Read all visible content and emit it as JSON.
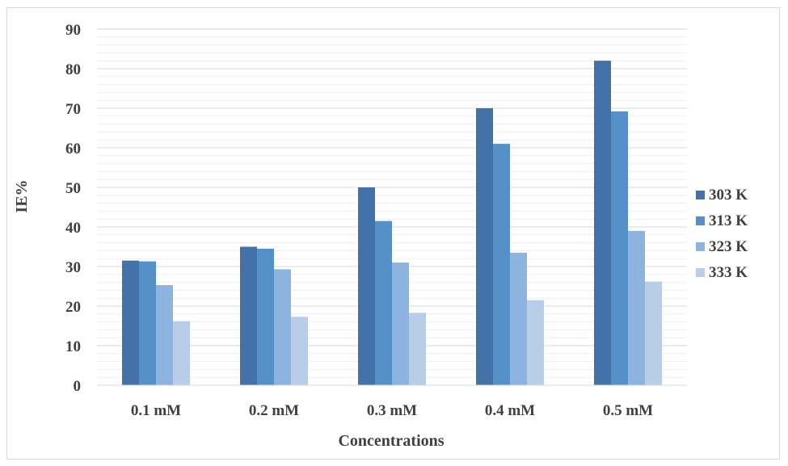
{
  "chart_data": {
    "type": "bar",
    "categories": [
      "0.1 mM",
      "0.2 mM",
      "0.3 mM",
      "0.4 mM",
      "0.5 mM"
    ],
    "series": [
      {
        "name": "303 K",
        "color": "#4472a8",
        "values": [
          31.5,
          35.0,
          50.0,
          70.0,
          82.0
        ]
      },
      {
        "name": "313 K",
        "color": "#5590c8",
        "values": [
          31.3,
          34.5,
          41.5,
          61.0,
          69.2
        ]
      },
      {
        "name": "323 K",
        "color": "#8db3df",
        "values": [
          25.3,
          29.3,
          31.0,
          33.5,
          39.0
        ]
      },
      {
        "name": "333 K",
        "color": "#b8cde8",
        "values": [
          16.2,
          17.3,
          18.3,
          21.5,
          26.2
        ]
      }
    ],
    "ylim": [
      0,
      90
    ],
    "yticks": [
      0,
      10,
      20,
      30,
      40,
      50,
      60,
      70,
      80,
      90
    ],
    "xlabel": "Concentrations",
    "ylabel": "IE%",
    "grid": true,
    "legend": "right"
  }
}
